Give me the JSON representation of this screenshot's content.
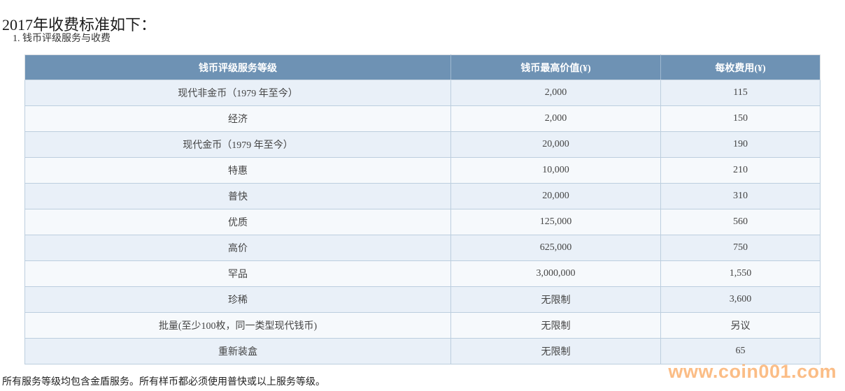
{
  "page": {
    "title": "2017年收费标准如下：",
    "section_label": "1. 钱币评级服务与收费",
    "footnote": "所有服务等级均包含金盾服务。所有样币都必须使用普快或以上服务等级。",
    "watermark": "www.coin001.com"
  },
  "table": {
    "columns": [
      "钱币评级服务等级",
      "钱币最高价值(¥)",
      "每枚费用(¥)"
    ],
    "rows": [
      [
        "现代非金币（1979 年至今）",
        "2,000",
        "115"
      ],
      [
        "经济",
        "2,000",
        "150"
      ],
      [
        "现代金币（1979 年至今）",
        "20,000",
        "190"
      ],
      [
        "特惠",
        "10,000",
        "210"
      ],
      [
        "普快",
        "20,000",
        "310"
      ],
      [
        "优质",
        "125,000",
        "560"
      ],
      [
        "高价",
        "625,000",
        "750"
      ],
      [
        "罕品",
        "3,000,000",
        "1,550"
      ],
      [
        "珍稀",
        "无限制",
        "3,600"
      ],
      [
        "批量(至少100枚，同一类型现代钱币)",
        "无限制",
        "另议"
      ],
      [
        "重新装盒",
        "无限制",
        "65"
      ]
    ]
  },
  "colors": {
    "header_bg": "#6e92b4",
    "header_text": "#ffffff",
    "row_odd_bg": "#e9f0f8",
    "row_even_bg": "#f6f9fc",
    "border": "#bccede",
    "watermark": "#fbbd86"
  }
}
